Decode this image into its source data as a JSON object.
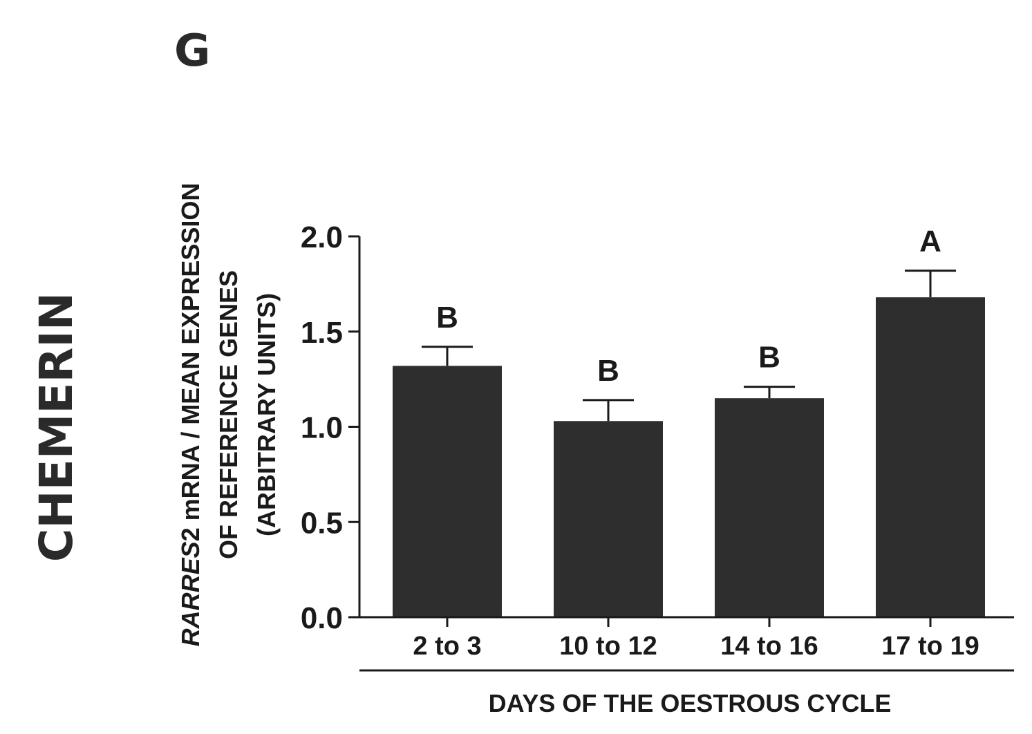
{
  "panel_label": "G",
  "gene_label": "CHEMERIN",
  "colors": {
    "bar": "#2e2e2e",
    "axis": "#1a1a1a"
  },
  "chart_data": {
    "type": "bar",
    "title": "",
    "ylabel_lines": [
      {
        "italic": "RARRES",
        "normal": "2 mRNA / MEAN EXPRESSION"
      },
      {
        "italic": "",
        "normal": "OF REFERENCE GENES"
      },
      {
        "italic": "",
        "normal": "(ARBITRARY UNITS)"
      }
    ],
    "xlabel": "DAYS OF THE OESTROUS CYCLE",
    "categories": [
      "2 to 3",
      "10 to 12",
      "14 to 16",
      "17 to 19"
    ],
    "values": [
      1.32,
      1.03,
      1.15,
      1.68
    ],
    "errors": [
      0.1,
      0.11,
      0.06,
      0.14
    ],
    "significance": [
      "B",
      "B",
      "B",
      "A"
    ],
    "ylim": [
      0.0,
      2.0
    ],
    "yticks": [
      0.0,
      0.5,
      1.0,
      1.5,
      2.0
    ],
    "ytick_labels": [
      "0.0",
      "0.5",
      "1.0",
      "1.5",
      "2.0"
    ],
    "grid": false
  }
}
